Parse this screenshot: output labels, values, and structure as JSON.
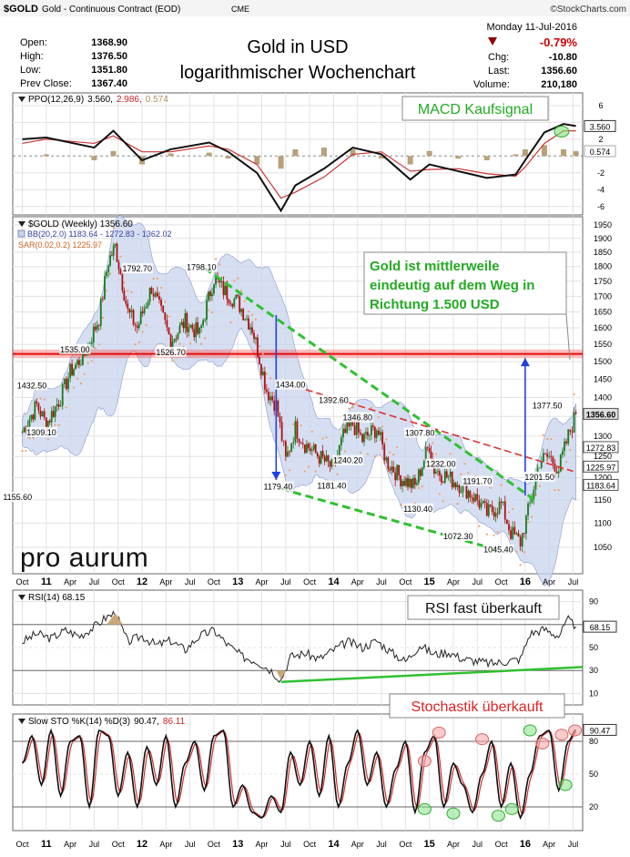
{
  "header": {
    "symbol": "$GOLD",
    "name": "Gold - Continuous Contract (EOD)",
    "exchange": "CME",
    "brand": "©StockCharts.com",
    "date": "Monday  11-Jul-2016",
    "open_label": "Open:",
    "open": "1368.90",
    "high_label": "High:",
    "high": "1376.50",
    "low_label": "Low:",
    "low": "1351.80",
    "prev_label": "Prev Close:",
    "prev": "1367.40",
    "pct": "-0.79%",
    "chg_label": "Chg:",
    "chg": "-10.80",
    "last_label": "Last:",
    "last": "1356.60",
    "vol_label": "Volume:",
    "volume": "210,180",
    "title_line1": "Gold in USD",
    "title_line2": "logarithmischer Wochenchart"
  },
  "colors": {
    "up": "#1a7a1a",
    "down": "#b01010",
    "bb_fill": "#c8d4ee",
    "sar": "#f0a060",
    "annotation_bg": "#ffffff",
    "annotation_border": "#888888",
    "green_text": "#22aa22",
    "red_text": "#dd2222",
    "band_red": "#ff4040",
    "trend_green": "#30c030",
    "arrow_blue": "#2040e0"
  },
  "chart_data": [
    {
      "type": "line",
      "panel": "PPO",
      "legend": "PPO(12,26,9) 3.560, 2.986, 0.574",
      "legend_parts": [
        "PPO(12,26,9)",
        "3.560,",
        "2.986,",
        "0.574"
      ],
      "y_ticks": [
        "6",
        "4",
        "2",
        "-2",
        "-4",
        "-6"
      ],
      "y_tick_values": [
        6,
        4,
        2,
        -2,
        -4,
        -6
      ],
      "last_labels": [
        "3.560",
        "0.574"
      ],
      "ylim": [
        -7,
        7.5
      ],
      "annotation": "MACD Kaufsignal",
      "series": [
        {
          "name": "PPO",
          "x": [
            2010.75,
            2011.0,
            2011.5,
            2011.7,
            2012.0,
            2012.3,
            2012.7,
            2012.9,
            2013.2,
            2013.45,
            2013.6,
            2013.9,
            2014.2,
            2014.5,
            2014.8,
            2015.0,
            2015.3,
            2015.6,
            2015.9,
            2016.0,
            2016.2,
            2016.4,
            2016.53
          ],
          "values": [
            2.0,
            2.2,
            1.0,
            3.0,
            -0.5,
            0.8,
            1.6,
            0.5,
            -2.0,
            -6.5,
            -3.5,
            -1.5,
            1.0,
            0.2,
            -2.8,
            -1.0,
            -1.8,
            -2.6,
            -2.2,
            -0.5,
            2.8,
            3.8,
            3.56
          ]
        },
        {
          "name": "Signal",
          "x": [
            2010.75,
            2011.0,
            2011.5,
            2011.7,
            2012.0,
            2012.3,
            2012.7,
            2012.9,
            2013.2,
            2013.45,
            2013.6,
            2013.9,
            2014.2,
            2014.5,
            2014.8,
            2015.0,
            2015.3,
            2015.6,
            2015.9,
            2016.0,
            2016.2,
            2016.4,
            2016.53
          ],
          "values": [
            1.5,
            2.0,
            1.5,
            2.4,
            0.5,
            0.5,
            1.2,
            0.8,
            -1.0,
            -5.0,
            -4.3,
            -2.5,
            0.2,
            0.5,
            -1.8,
            -1.6,
            -1.5,
            -2.1,
            -2.4,
            -1.3,
            1.5,
            3.0,
            2.986
          ]
        },
        {
          "name": "Histogram",
          "x": [
            2011.0,
            2011.5,
            2011.7,
            2012.0,
            2012.3,
            2012.7,
            2012.9,
            2013.2,
            2013.45,
            2013.6,
            2013.9,
            2014.2,
            2014.5,
            2014.8,
            2015.0,
            2015.3,
            2015.6,
            2015.9,
            2016.0,
            2016.2,
            2016.4,
            2016.53
          ],
          "values": [
            0.2,
            -0.5,
            0.6,
            -1.0,
            0.3,
            0.4,
            -0.3,
            -1.0,
            -1.5,
            0.8,
            1.0,
            0.8,
            -0.3,
            -1.0,
            0.6,
            -0.3,
            -0.5,
            0.2,
            0.8,
            1.3,
            0.8,
            0.574
          ]
        }
      ]
    },
    {
      "type": "candlestick",
      "panel": "Price",
      "legend_main": "$GOLD (Weekly) 1356.60",
      "legend_bb": "BB(20,2.0) 1183.64 - 1272.83 - 1362.02",
      "legend_sar": "SAR(0.02,0.2) 1225.97",
      "scale": "log",
      "ylim": [
        1005,
        1960
      ],
      "y_ticks": [
        1950,
        1900,
        1850,
        1800,
        1750,
        1700,
        1650,
        1600,
        1550,
        1500,
        1450,
        1400,
        1350,
        1300,
        1250,
        1200,
        1150,
        1100,
        1050
      ],
      "right_labels": [
        {
          "text": "1356.60",
          "y": 1356.6,
          "style": "dark"
        },
        {
          "text": "1272.83",
          "y": 1272.83,
          "style": "light"
        },
        {
          "text": "1225.97",
          "y": 1225.97,
          "style": "light"
        },
        {
          "text": "1183.64",
          "y": 1183.64,
          "style": "light"
        }
      ],
      "price_points": {
        "x": [
          2010.75,
          2010.9,
          2011.0,
          2011.15,
          2011.25,
          2011.4,
          2011.55,
          2011.65,
          2011.72,
          2011.85,
          2011.95,
          2012.1,
          2012.3,
          2012.45,
          2012.6,
          2012.75,
          2012.85,
          2013.0,
          2013.15,
          2013.3,
          2013.4,
          2013.5,
          2013.6,
          2013.7,
          2013.85,
          2014.0,
          2014.1,
          2014.2,
          2014.3,
          2014.45,
          2014.55,
          2014.7,
          2014.85,
          2015.0,
          2015.05,
          2015.2,
          2015.35,
          2015.5,
          2015.6,
          2015.75,
          2015.85,
          2015.95,
          2016.05,
          2016.15,
          2016.25,
          2016.35,
          2016.45,
          2016.53
        ],
        "values": [
          1310,
          1380,
          1330,
          1400,
          1470,
          1520,
          1630,
          1820,
          1870,
          1650,
          1600,
          1730,
          1560,
          1620,
          1580,
          1760,
          1720,
          1680,
          1600,
          1420,
          1380,
          1240,
          1320,
          1280,
          1250,
          1220,
          1300,
          1330,
          1290,
          1320,
          1240,
          1200,
          1180,
          1280,
          1220,
          1200,
          1180,
          1150,
          1120,
          1140,
          1080,
          1060,
          1140,
          1240,
          1250,
          1220,
          1300,
          1356.6
        ]
      },
      "labels": [
        {
          "text": "1155.60",
          "x": 2010.7,
          "y": 1155.6
        },
        {
          "text": "1309.10",
          "x": 2010.95,
          "y": 1309.1
        },
        {
          "text": "1432.50",
          "x": 2010.85,
          "y": 1432.5
        },
        {
          "text": "1535.00",
          "x": 2011.3,
          "y": 1535.0
        },
        {
          "text": "1792.70",
          "x": 2011.95,
          "y": 1792.7
        },
        {
          "text": "1526.70",
          "x": 2012.3,
          "y": 1526.7
        },
        {
          "text": "1798.10",
          "x": 2012.62,
          "y": 1798.1
        },
        {
          "text": "1434.00",
          "x": 2013.55,
          "y": 1434.0
        },
        {
          "text": "1392.60",
          "x": 2014.0,
          "y": 1392.6
        },
        {
          "text": "1346.80",
          "x": 2014.25,
          "y": 1346.8
        },
        {
          "text": "1307.80",
          "x": 2014.9,
          "y": 1307.8
        },
        {
          "text": "1232.00",
          "x": 2015.12,
          "y": 1232.0
        },
        {
          "text": "1191.70",
          "x": 2015.5,
          "y": 1191.7
        },
        {
          "text": "1240.20",
          "x": 2014.15,
          "y": 1240.2
        },
        {
          "text": "1179.40",
          "x": 2013.42,
          "y": 1179.4
        },
        {
          "text": "1181.40",
          "x": 2013.98,
          "y": 1181.4
        },
        {
          "text": "1130.40",
          "x": 2014.88,
          "y": 1130.4
        },
        {
          "text": "1072.30",
          "x": 2015.3,
          "y": 1072.3
        },
        {
          "text": "1045.40",
          "x": 2015.72,
          "y": 1045.4
        },
        {
          "text": "1201.50",
          "x": 2016.15,
          "y": 1201.5
        },
        {
          "text": "1377.50",
          "x": 2016.23,
          "y": 1377.5
        }
      ],
      "resistance_band": [
        1510,
        1535
      ],
      "annotation": [
        "Gold ist mittlerweile",
        "eindeutig auf dem Weg in",
        "Richtung 1.500 USD"
      ],
      "logo": "pro aurum"
    },
    {
      "type": "line",
      "panel": "RSI",
      "legend": "RSI(14) 68.15",
      "y_ticks": [
        "90",
        "70",
        "50",
        "30",
        "10"
      ],
      "y_tick_values": [
        90,
        70,
        50,
        30,
        10
      ],
      "last_label": "68.15",
      "ylim": [
        0,
        100
      ],
      "annotation": "RSI fast überkauft",
      "series": [
        {
          "name": "RSI",
          "x": [
            2010.75,
            2010.9,
            2011.05,
            2011.2,
            2011.35,
            2011.5,
            2011.62,
            2011.72,
            2011.85,
            2012.0,
            2012.15,
            2012.3,
            2012.45,
            2012.6,
            2012.75,
            2012.9,
            2013.05,
            2013.2,
            2013.35,
            2013.45,
            2013.55,
            2013.7,
            2013.85,
            2014.0,
            2014.15,
            2014.3,
            2014.45,
            2014.6,
            2014.75,
            2014.9,
            2015.05,
            2015.2,
            2015.35,
            2015.5,
            2015.65,
            2015.8,
            2015.95,
            2016.05,
            2016.2,
            2016.35,
            2016.45,
            2016.53
          ],
          "values": [
            55,
            62,
            58,
            65,
            60,
            68,
            76,
            80,
            55,
            60,
            52,
            56,
            48,
            60,
            65,
            52,
            42,
            38,
            30,
            22,
            42,
            45,
            40,
            48,
            55,
            50,
            56,
            46,
            38,
            52,
            44,
            46,
            40,
            38,
            36,
            38,
            40,
            62,
            66,
            60,
            74,
            68.15
          ]
        }
      ]
    },
    {
      "type": "line",
      "panel": "STO",
      "legend": "Slow STO %K(14) %D(3) 90.47, 86.11",
      "legend_parts": [
        "Slow STO %K(14) %D(3)",
        "90.47,",
        "86.11"
      ],
      "y_ticks": [
        "80",
        "50",
        "20"
      ],
      "y_tick_values": [
        80,
        50,
        20
      ],
      "last_label": "90.47",
      "ylim": [
        0,
        100
      ],
      "annotation": "Stochastik überkauft",
      "series": [
        {
          "name": "%K",
          "x": [
            2010.75,
            2010.85,
            2010.95,
            2011.05,
            2011.15,
            2011.25,
            2011.35,
            2011.45,
            2011.55,
            2011.65,
            2011.75,
            2011.85,
            2011.95,
            2012.05,
            2012.15,
            2012.25,
            2012.35,
            2012.45,
            2012.55,
            2012.65,
            2012.75,
            2012.85,
            2012.95,
            2013.05,
            2013.15,
            2013.25,
            2013.35,
            2013.45,
            2013.55,
            2013.65,
            2013.75,
            2013.85,
            2013.95,
            2014.05,
            2014.15,
            2014.25,
            2014.35,
            2014.45,
            2014.55,
            2014.65,
            2014.75,
            2014.85,
            2014.95,
            2015.05,
            2015.15,
            2015.25,
            2015.35,
            2015.45,
            2015.55,
            2015.65,
            2015.75,
            2015.85,
            2015.95,
            2016.05,
            2016.15,
            2016.25,
            2016.35,
            2016.45,
            2016.53
          ],
          "values": [
            60,
            85,
            40,
            90,
            30,
            80,
            85,
            20,
            90,
            85,
            30,
            70,
            20,
            75,
            40,
            85,
            20,
            60,
            80,
            35,
            85,
            90,
            20,
            40,
            15,
            10,
            30,
            15,
            70,
            40,
            80,
            30,
            85,
            20,
            60,
            90,
            40,
            70,
            20,
            55,
            80,
            15,
            70,
            85,
            20,
            60,
            40,
            15,
            50,
            80,
            20,
            60,
            10,
            50,
            85,
            90,
            35,
            80,
            90.47
          ]
        }
      ]
    }
  ],
  "x_axis": {
    "labels": [
      "Oct",
      "11",
      "Apr",
      "Jul",
      "Oct",
      "12",
      "Apr",
      "Jul",
      "Oct",
      "13",
      "Apr",
      "Jul",
      "Oct",
      "14",
      "Apr",
      "Jul",
      "Oct",
      "15",
      "Apr",
      "Jul",
      "Oct",
      "16",
      "Apr",
      "Jul"
    ],
    "values": [
      2010.75,
      2011.0,
      2011.25,
      2011.5,
      2011.75,
      2012.0,
      2012.25,
      2012.5,
      2012.75,
      2013.0,
      2013.25,
      2013.5,
      2013.75,
      2014.0,
      2014.25,
      2014.5,
      2014.75,
      2015.0,
      2015.25,
      2015.5,
      2015.75,
      2016.0,
      2016.25,
      2016.5
    ]
  }
}
